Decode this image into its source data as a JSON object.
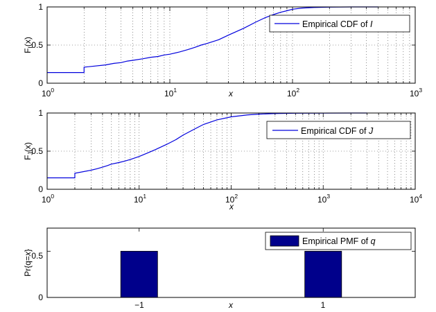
{
  "chart_data": [
    {
      "type": "line",
      "xscale": "log",
      "xlim": [
        1,
        1000
      ],
      "ylim": [
        0,
        1
      ],
      "xticks": [
        {
          "base": "10",
          "exp": "0"
        },
        {
          "base": "10",
          "exp": "1"
        },
        {
          "base": "10",
          "exp": "2"
        },
        {
          "base": "10",
          "exp": "3"
        }
      ],
      "yticks": [
        "0",
        "0.5",
        "1"
      ],
      "xlabel": "x",
      "ylabel": {
        "prefix": "F",
        "sub": "I",
        "arg": "(x)"
      },
      "grid": true,
      "legend_position": "top-right",
      "series": [
        {
          "name": "Empirical CDF of I",
          "name_prefix": "Empirical CDF of ",
          "name_var": "I",
          "color": "#0000dd",
          "x": [
            1,
            2,
            2,
            3,
            3.5,
            4,
            4.5,
            5,
            6,
            7,
            8,
            9,
            10,
            12,
            14,
            16,
            18,
            20,
            25,
            30,
            40,
            50,
            60,
            70,
            80,
            90,
            100,
            120,
            150,
            200,
            300,
            500
          ],
          "y": [
            0.14,
            0.14,
            0.21,
            0.24,
            0.26,
            0.27,
            0.29,
            0.3,
            0.32,
            0.34,
            0.35,
            0.37,
            0.38,
            0.41,
            0.44,
            0.47,
            0.5,
            0.52,
            0.57,
            0.63,
            0.72,
            0.8,
            0.86,
            0.9,
            0.93,
            0.95,
            0.97,
            0.985,
            0.993,
            0.998,
            1.0,
            1.0
          ]
        }
      ]
    },
    {
      "type": "line",
      "xscale": "log",
      "xlim": [
        1,
        10000
      ],
      "ylim": [
        0,
        1
      ],
      "xticks": [
        {
          "base": "10",
          "exp": "0"
        },
        {
          "base": "10",
          "exp": "1"
        },
        {
          "base": "10",
          "exp": "2"
        },
        {
          "base": "10",
          "exp": "3"
        },
        {
          "base": "10",
          "exp": "4"
        }
      ],
      "yticks": [
        "0",
        "0.5",
        "1"
      ],
      "xlabel": "x",
      "ylabel": {
        "prefix": "F",
        "sub": "J",
        "arg": "(x)"
      },
      "grid": true,
      "legend_position": "middle-right",
      "series": [
        {
          "name": "Empirical CDF of J",
          "name_prefix": "Empirical CDF of ",
          "name_var": "J",
          "color": "#0000dd",
          "x": [
            1,
            2,
            2,
            3,
            3.5,
            4,
            4.5,
            5,
            6,
            7,
            8,
            10,
            12,
            15,
            20,
            25,
            30,
            40,
            50,
            70,
            100,
            150,
            200,
            300,
            500,
            1000,
            2000,
            3000
          ],
          "y": [
            0.15,
            0.15,
            0.21,
            0.25,
            0.27,
            0.29,
            0.31,
            0.33,
            0.35,
            0.37,
            0.39,
            0.43,
            0.47,
            0.52,
            0.59,
            0.65,
            0.71,
            0.79,
            0.85,
            0.91,
            0.95,
            0.975,
            0.985,
            0.993,
            0.997,
            0.999,
            1.0,
            1.0
          ]
        }
      ]
    },
    {
      "type": "bar",
      "categories": [
        "−1",
        "1"
      ],
      "values": [
        0.5,
        0.5
      ],
      "x": [
        -1,
        1
      ],
      "xlim": [
        -2,
        2
      ],
      "ylim": [
        0,
        0.75
      ],
      "yticks": [
        "0",
        "0.5"
      ],
      "xlabel": "x",
      "ylabel": {
        "prefix": "Pr{q=",
        "arg": "x",
        "suffix": "}"
      },
      "grid": false,
      "legend_position": "top-right",
      "series": [
        {
          "name": "Empirical PMF of q",
          "name_prefix": "Empirical PMF of ",
          "name_var": "q",
          "color": "#00008b",
          "values": [
            0.5,
            0.5
          ]
        }
      ]
    }
  ]
}
